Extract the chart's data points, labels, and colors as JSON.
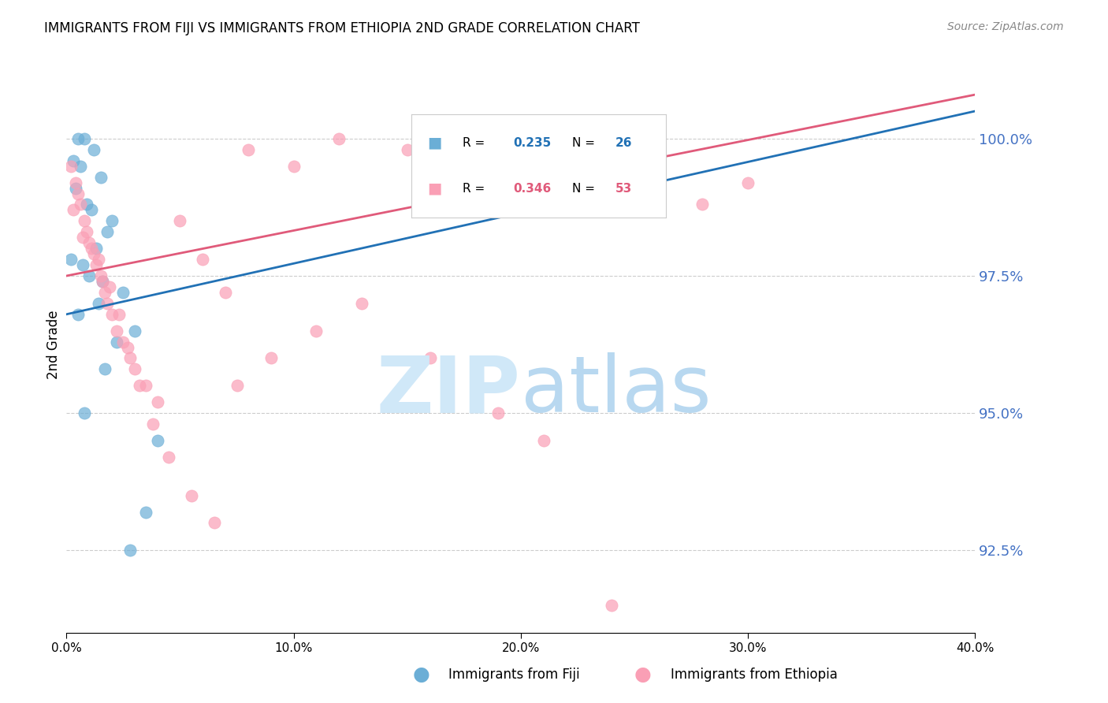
{
  "title": "IMMIGRANTS FROM FIJI VS IMMIGRANTS FROM ETHIOPIA 2ND GRADE CORRELATION CHART",
  "source": "Source: ZipAtlas.com",
  "ylabel": "2nd Grade",
  "ylabel_ticks": [
    92.5,
    95.0,
    97.5,
    100.0
  ],
  "ylabel_tick_labels": [
    "92.5%",
    "95.0%",
    "97.5%",
    "100.0%"
  ],
  "xmin": 0.0,
  "xmax": 40.0,
  "ymin": 91.0,
  "ymax": 101.5,
  "fiji_R": 0.235,
  "fiji_N": 26,
  "ethiopia_R": 0.346,
  "ethiopia_N": 53,
  "fiji_color": "#6baed6",
  "ethiopia_color": "#fa9fb5",
  "fiji_line_color": "#2171b5",
  "ethiopia_line_color": "#e05a7a",
  "watermark_color": "#d0e8f8",
  "fiji_scatter_x": [
    0.5,
    0.8,
    1.2,
    0.3,
    0.6,
    1.5,
    0.4,
    0.9,
    1.1,
    2.0,
    1.8,
    1.3,
    0.2,
    0.7,
    1.0,
    1.6,
    2.5,
    1.4,
    0.5,
    3.0,
    2.2,
    1.7,
    0.8,
    4.0,
    3.5,
    2.8
  ],
  "fiji_scatter_y": [
    100.0,
    100.0,
    99.8,
    99.6,
    99.5,
    99.3,
    99.1,
    98.8,
    98.7,
    98.5,
    98.3,
    98.0,
    97.8,
    97.7,
    97.5,
    97.4,
    97.2,
    97.0,
    96.8,
    96.5,
    96.3,
    95.8,
    95.0,
    94.5,
    93.2,
    92.5
  ],
  "ethiopia_scatter_x": [
    0.2,
    0.4,
    0.5,
    0.6,
    0.8,
    0.9,
    1.0,
    1.1,
    1.2,
    1.3,
    1.5,
    1.6,
    1.7,
    1.8,
    2.0,
    2.2,
    2.5,
    2.8,
    3.0,
    3.5,
    4.0,
    5.0,
    6.0,
    7.0,
    8.0,
    10.0,
    12.0,
    15.0,
    18.0,
    20.0,
    22.0,
    25.0,
    28.0,
    30.0,
    0.3,
    0.7,
    1.4,
    1.9,
    2.3,
    2.7,
    3.2,
    3.8,
    4.5,
    5.5,
    6.5,
    7.5,
    9.0,
    11.0,
    13.0,
    16.0,
    19.0,
    21.0,
    24.0
  ],
  "ethiopia_scatter_y": [
    99.5,
    99.2,
    99.0,
    98.8,
    98.5,
    98.3,
    98.1,
    98.0,
    97.9,
    97.7,
    97.5,
    97.4,
    97.2,
    97.0,
    96.8,
    96.5,
    96.3,
    96.0,
    95.8,
    95.5,
    95.2,
    98.5,
    97.8,
    97.2,
    99.8,
    99.5,
    100.0,
    99.8,
    100.0,
    99.5,
    99.0,
    100.0,
    98.8,
    99.2,
    98.7,
    98.2,
    97.8,
    97.3,
    96.8,
    96.2,
    95.5,
    94.8,
    94.2,
    93.5,
    93.0,
    95.5,
    96.0,
    96.5,
    97.0,
    96.0,
    95.0,
    94.5,
    91.5
  ],
  "fiji_line_x": [
    0,
    40
  ],
  "fiji_line_y": [
    96.8,
    100.5
  ],
  "ethiopia_line_x": [
    0,
    40
  ],
  "ethiopia_line_y": [
    97.5,
    100.8
  ]
}
